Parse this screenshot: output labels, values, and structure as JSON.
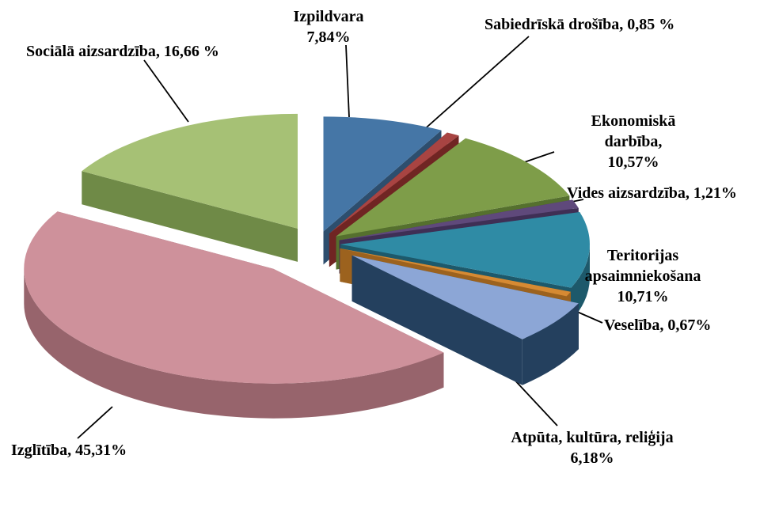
{
  "chart_data": {
    "type": "pie",
    "effect": "3d-exploded",
    "title": "",
    "legend": "none",
    "direction": "clockwise",
    "start_angle_deg": 0,
    "labels": [
      "Izpildvara",
      "Sabiedrīskā drošība",
      "Ekonomiskā darbība",
      "Vides aizsardzība",
      "Teritorijas apsaimniekošana",
      "Veselība",
      "Atpūta, kultūra, reliģija",
      "Izglītība",
      "Sociālā aizsardzība"
    ],
    "slugs": [
      "izpildvara",
      "sabiedriska-drosiba",
      "ekonomiska-darbiba",
      "vides-aizsardziba",
      "teritorijas-apsaimniekosana",
      "veseliba",
      "atputa-kultura-religija",
      "izglitiba",
      "sociala-aizsardziba"
    ],
    "values": [
      7.84,
      0.85,
      10.57,
      1.21,
      10.71,
      0.67,
      6.18,
      45.31,
      16.66
    ],
    "display_labels": [
      "Izpildvara\n7,84%",
      "Sabiedrīskā drošība, 0,85 %",
      "Ekonomiskā darbība,\n10,57%",
      "Vides aizsardzība, 1,21%",
      "Teritorijas\napsaimniekošana 10,71%",
      "Veselība, 0,67%",
      "Atpūta, kultūra, reliģija\n6,18%",
      "Izglītība, 45,31%",
      "Sociālā aizsardzība, 16,66 %"
    ],
    "colors": [
      "#4576A6",
      "#A84442",
      "#7E9D49",
      "#5F497B",
      "#2F8BA5",
      "#D68A33",
      "#8CA6D6",
      "#CE919B",
      "#A6C175"
    ],
    "side_colors": [
      "#2D4E6E",
      "#702523",
      "#55702E",
      "#3F2F55",
      "#1D596B",
      "#9C621E",
      "#24405E",
      "#97646C",
      "#6F8A47"
    ],
    "label_color": "#000000",
    "leader_line_color": "#000000",
    "background": "#ffffff"
  }
}
